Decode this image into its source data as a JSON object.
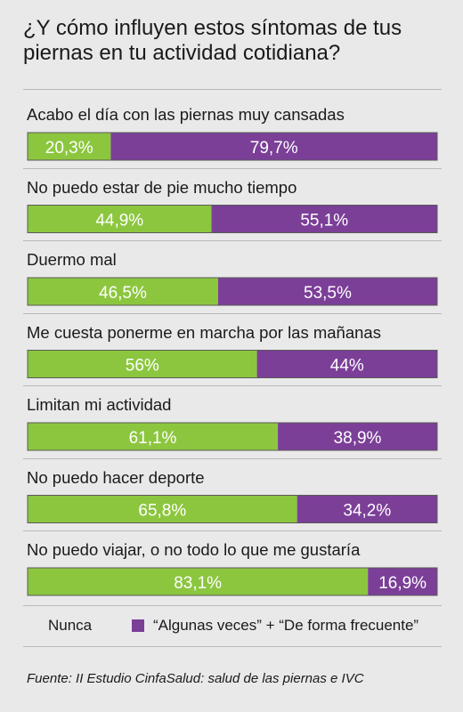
{
  "title_line1": "¿Y cómo influyen estos síntomas de tus",
  "title_line2": "piernas en tu actividad cotidiana?",
  "colors": {
    "green": "#8cc63f",
    "purple": "#7b3f98",
    "outline": "#5a5a5a",
    "rule": "#b9b9bb"
  },
  "chart_data": {
    "type": "bar",
    "stacked": true,
    "orientation": "horizontal",
    "xlim": [
      0,
      100
    ],
    "categories": [
      "Acabo el día con las piernas muy cansadas",
      "No puedo estar de pie mucho tiempo",
      "Duermo mal",
      "Me cuesta ponerme en marcha por las mañanas",
      "Limitan mi actividad",
      "No puedo hacer deporte",
      "No puedo viajar, o no todo lo que me gustaría"
    ],
    "series": [
      {
        "name": "Nunca",
        "values": [
          20.3,
          44.9,
          46.5,
          56,
          61.1,
          65.8,
          83.1
        ],
        "labels": [
          "20,3%",
          "44,9%",
          "46,5%",
          "56%",
          "61,1%",
          "65,8%",
          "83,1%"
        ]
      },
      {
        "name": "“Algunas veces” + “De forma frecuente”",
        "values": [
          79.7,
          55.1,
          53.5,
          44,
          38.9,
          34.2,
          16.9
        ],
        "labels": [
          "79,7%",
          "55,1%",
          "53,5%",
          "44%",
          "38,9%",
          "34,2%",
          "16,9%"
        ]
      }
    ],
    "legend_position": "bottom"
  },
  "source": "Fuente: II Estudio CinfaSalud: salud de las piernas e IVC"
}
